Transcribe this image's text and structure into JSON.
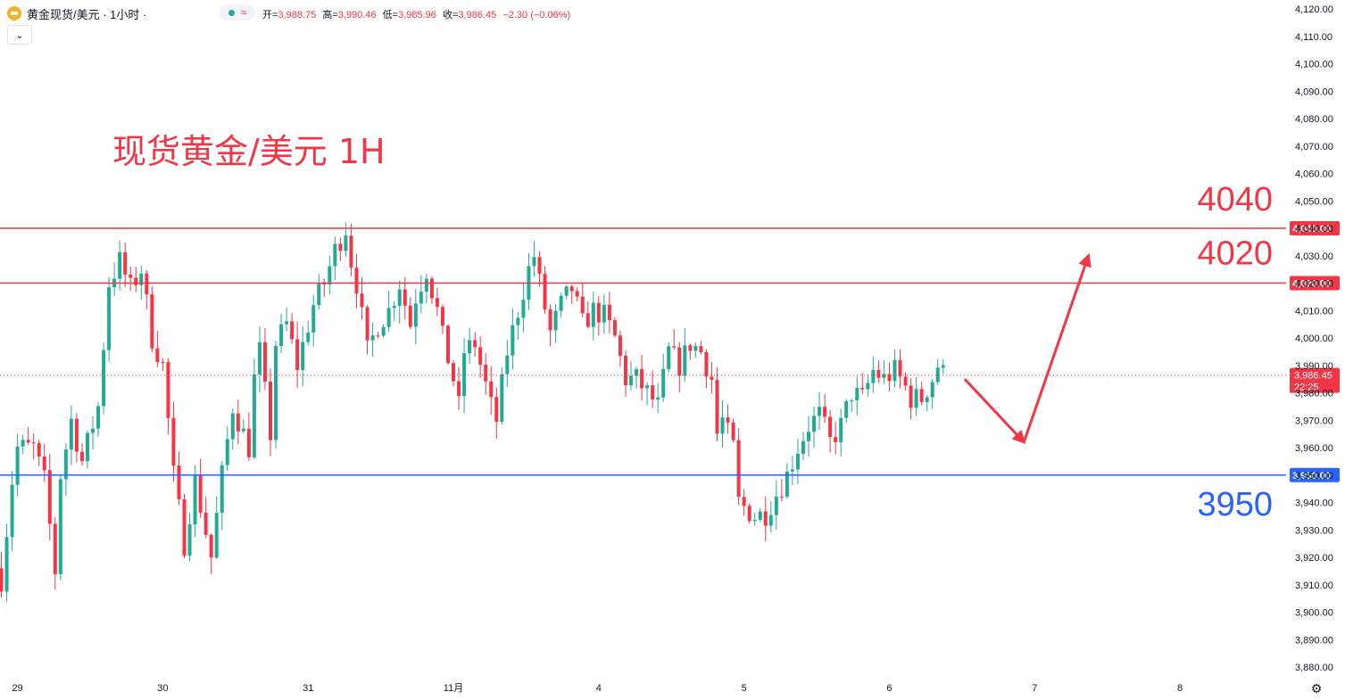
{
  "header": {
    "title": "黄金现货/美元 · 1小时 ·",
    "open_label": "开=",
    "open": "3,988.75",
    "high_label": "高=",
    "high": "3,990.46",
    "low_label": "低=",
    "low": "3,985.96",
    "close_label": "收=",
    "close": "3,986.45",
    "change": "−2.30 (−0.06%)",
    "collapse_icon": "chevron-down-icon",
    "settings_icon": "gear-icon"
  },
  "colors": {
    "up": "#22ab94",
    "down": "#f23645",
    "resistance": "#f23645",
    "support": "#2962ff",
    "annotation": "#f23645",
    "support_text": "#2962ff",
    "axis_text": "#131722",
    "price_dot": "#f23645"
  },
  "chart_data": {
    "type": "candlestick",
    "title": "现货黄金/美元 1H",
    "timeframe": "1H",
    "y_axis_ticks": [
      4120,
      4110,
      4100,
      4090,
      4080,
      4070,
      4060,
      4050,
      4040,
      4030,
      4020,
      4010,
      4000,
      3990,
      3980,
      3970,
      3960,
      3950,
      3940,
      3930,
      3920,
      3910,
      3900,
      3890,
      3880
    ],
    "y_tick_labels": [
      "4,120.00",
      "4,110.00",
      "4,100.00",
      "4,090.00",
      "4,080.00",
      "4,070.00",
      "4,060.00",
      "4,050.00",
      "4,040.00",
      "4,030.00",
      "4,020.00",
      "4,010.00",
      "4,000.00",
      "3,990.00",
      "3,980.00",
      "3,970.00",
      "3,960.00",
      "3,950.00",
      "3,940.00",
      "3,930.00",
      "3,920.00",
      "3,910.00",
      "3,900.00",
      "3,890.00",
      "3,880.00"
    ],
    "ylim": [
      3877,
      4123
    ],
    "x_ticks": [
      {
        "label": "29",
        "index": 3
      },
      {
        "label": "30",
        "index": 30
      },
      {
        "label": "31",
        "index": 57
      },
      {
        "label": "11月",
        "index": 84
      },
      {
        "label": "4",
        "index": 111
      },
      {
        "label": "5",
        "index": 138
      },
      {
        "label": "6",
        "index": 165
      },
      {
        "label": "7",
        "index": 192
      },
      {
        "label": "8",
        "index": 219
      }
    ],
    "x_slots": 246,
    "horizontal_lines": [
      {
        "name": "resistance-4040",
        "value": 4040,
        "label": "4,040.00",
        "annotation": "4040",
        "kind": "resistance"
      },
      {
        "name": "resistance-4020",
        "value": 4020,
        "label": "4,020.00",
        "annotation": "4020",
        "kind": "resistance"
      },
      {
        "name": "support-3950",
        "value": 3950,
        "label": "3,950.00",
        "annotation": "3950",
        "kind": "support"
      }
    ],
    "current_price": {
      "value": 3986.45,
      "label": "3,986.45",
      "countdown": "22:25"
    },
    "forecast_path": [
      {
        "i": 179,
        "price": 3985
      },
      {
        "i": 190,
        "price": 3962
      },
      {
        "i": 202,
        "price": 4030
      }
    ],
    "keypoints": [
      [
        0,
        3912
      ],
      [
        2,
        3948
      ],
      [
        3,
        3960
      ],
      [
        6,
        3960
      ],
      [
        8,
        3948
      ],
      [
        10,
        3915
      ],
      [
        11,
        3950
      ],
      [
        13,
        3970
      ],
      [
        15,
        3955
      ],
      [
        18,
        3975
      ],
      [
        20,
        4020
      ],
      [
        22,
        4028
      ],
      [
        24,
        4018
      ],
      [
        26,
        4025
      ],
      [
        28,
        4000
      ],
      [
        30,
        3990
      ],
      [
        32,
        3950
      ],
      [
        34,
        3925
      ],
      [
        36,
        3948
      ],
      [
        39,
        3920
      ],
      [
        41,
        3950
      ],
      [
        43,
        3975
      ],
      [
        46,
        3960
      ],
      [
        47,
        3985
      ],
      [
        48,
        3995
      ],
      [
        50,
        3965
      ],
      [
        51,
        3998
      ],
      [
        53,
        4005
      ],
      [
        55,
        3990
      ],
      [
        58,
        4012
      ],
      [
        60,
        4020
      ],
      [
        62,
        4032
      ],
      [
        64,
        4040
      ],
      [
        65,
        4028
      ],
      [
        66,
        4020
      ],
      [
        68,
        3995
      ],
      [
        70,
        4005
      ],
      [
        72,
        4010
      ],
      [
        74,
        4020
      ],
      [
        76,
        4005
      ],
      [
        77,
        4015
      ],
      [
        79,
        4025
      ],
      [
        81,
        4010
      ],
      [
        82,
        4000
      ],
      [
        84,
        3985
      ],
      [
        85,
        3975
      ],
      [
        86,
        3995
      ],
      [
        88,
        3998
      ],
      [
        91,
        3975
      ],
      [
        92,
        3970
      ],
      [
        94,
        3995
      ],
      [
        96,
        4010
      ],
      [
        98,
        4025
      ],
      [
        99,
        4030
      ],
      [
        100,
        4020
      ],
      [
        102,
        4002
      ],
      [
        104,
        4012
      ],
      [
        106,
        4018
      ],
      [
        108,
        4005
      ],
      [
        110,
        4010
      ],
      [
        112,
        4008
      ],
      [
        114,
        4000
      ],
      [
        116,
        3985
      ],
      [
        118,
        3985
      ],
      [
        120,
        3980
      ],
      [
        122,
        3975
      ],
      [
        124,
        3995
      ],
      [
        126,
        3990
      ],
      [
        128,
        3998
      ],
      [
        130,
        3995
      ],
      [
        132,
        3985
      ],
      [
        133,
        3965
      ],
      [
        134,
        3970
      ],
      [
        136,
        3960
      ],
      [
        137,
        3940
      ],
      [
        140,
        3935
      ],
      [
        142,
        3936
      ],
      [
        144,
        3943
      ],
      [
        146,
        3950
      ],
      [
        148,
        3960
      ],
      [
        150,
        3968
      ],
      [
        152,
        3972
      ],
      [
        154,
        3962
      ],
      [
        156,
        3968
      ],
      [
        158,
        3980
      ],
      [
        160,
        3978
      ],
      [
        162,
        3988
      ],
      [
        164,
        3985
      ],
      [
        166,
        3988
      ],
      [
        168,
        3982
      ],
      [
        169,
        3978
      ],
      [
        171,
        3978
      ],
      [
        173,
        3985
      ],
      [
        174,
        3990
      ],
      [
        175,
        3987
      ]
    ]
  }
}
